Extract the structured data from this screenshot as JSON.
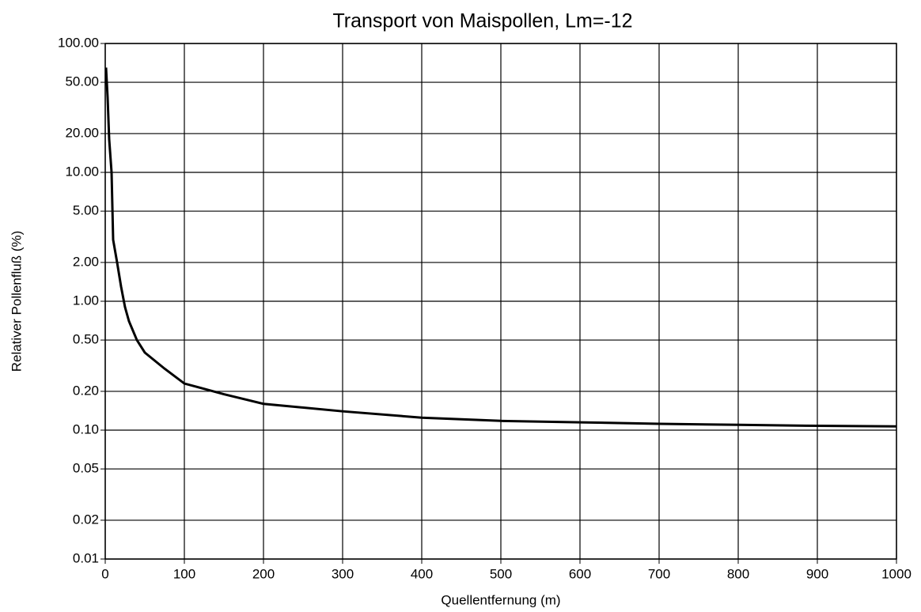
{
  "chart_data": {
    "type": "line",
    "title": "Transport von Maispollen, Lm=-12",
    "xlabel": "Quellentfernung (m)",
    "ylabel": "Relativer Pollenfluß (%)",
    "log_y": true,
    "grid": true,
    "xlim": [
      0,
      1000
    ],
    "xticks": [
      0,
      100,
      200,
      300,
      400,
      500,
      600,
      700,
      800,
      900,
      1000
    ],
    "ylim": [
      0.01,
      100
    ],
    "yticks": [
      0.01,
      0.02,
      0.05,
      {
        "value": 0.1,
        "label": "0.10"
      },
      {
        "value": 0.2,
        "label": "0.20"
      },
      {
        "value": 0.5,
        "label": "0.50"
      },
      {
        "value": 1,
        "label": "1.00"
      },
      {
        "value": 2,
        "label": "2.00"
      },
      {
        "value": 5,
        "label": "5.00"
      },
      {
        "value": 10,
        "label": "10.00"
      },
      {
        "value": 20,
        "label": "20.00"
      },
      {
        "value": 50,
        "label": "50.00"
      },
      {
        "value": 100,
        "label": "100.00"
      }
    ],
    "x": [
      1,
      3,
      5,
      8,
      10,
      15,
      20,
      25,
      30,
      40,
      50,
      75,
      100,
      150,
      200,
      300,
      400,
      500,
      600,
      700,
      800,
      900,
      1000
    ],
    "series": [
      {
        "color": "#000000",
        "values": [
          65,
          38,
          18,
          10,
          3,
          2,
          1.3,
          0.9,
          0.7,
          0.5,
          0.4,
          0.3,
          0.23,
          0.19,
          0.16,
          0.14,
          0.125,
          0.118,
          0.115,
          0.112,
          0.11,
          0.108,
          0.107
        ]
      }
    ]
  }
}
